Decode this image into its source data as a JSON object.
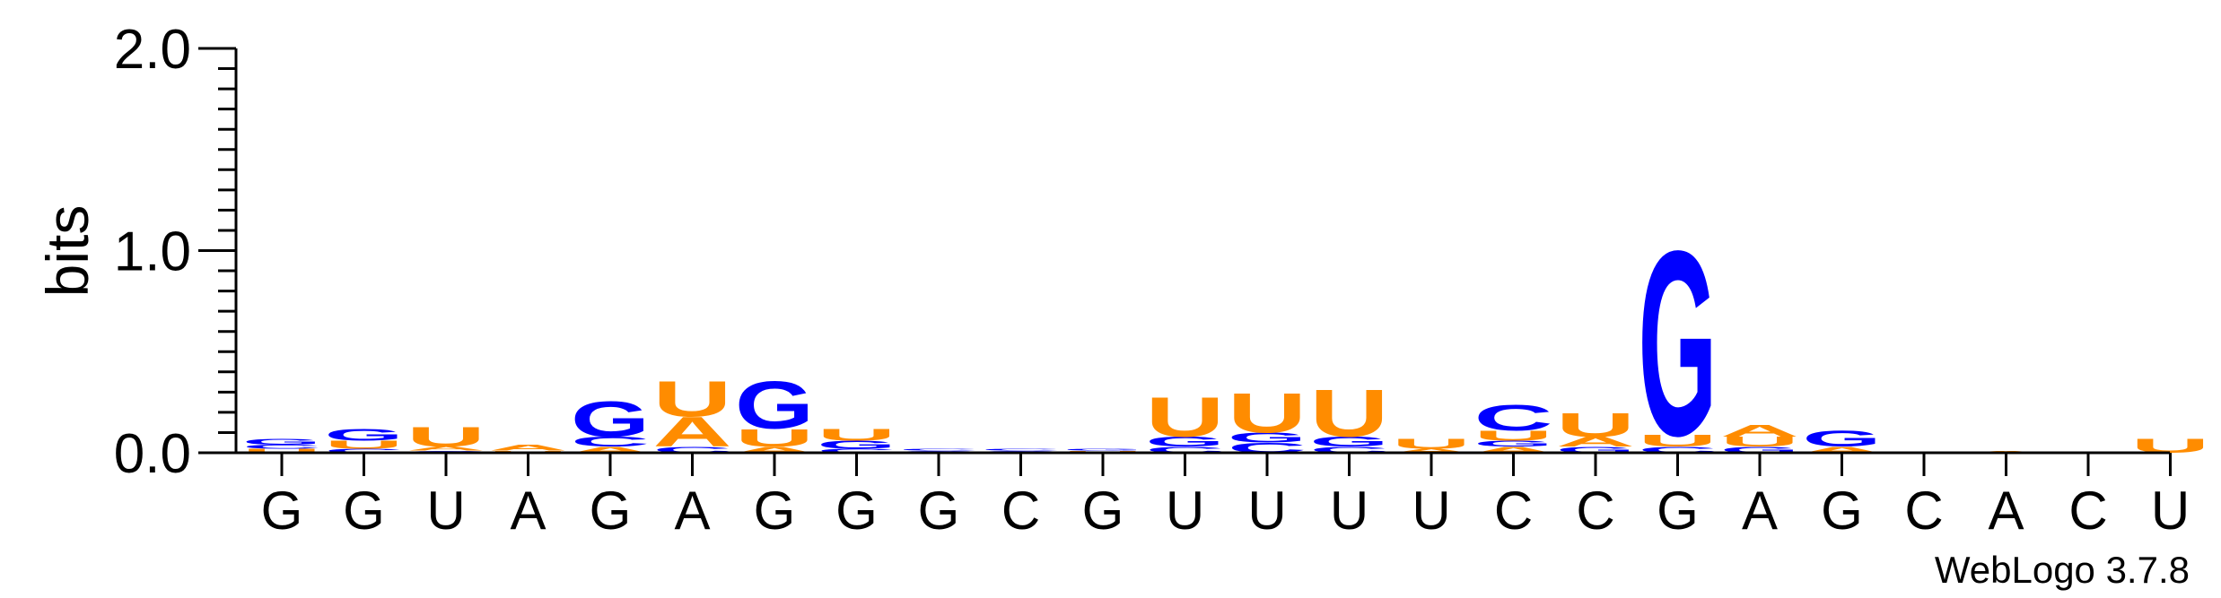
{
  "chart_data": {
    "type": "sequence-logo",
    "ylabel": "bits",
    "ylim": [
      0,
      2.0
    ],
    "yticks": [
      {
        "value": 0.0,
        "label": "0.0"
      },
      {
        "value": 1.0,
        "label": "1.0"
      },
      {
        "value": 2.0,
        "label": "2.0"
      }
    ],
    "sequence": [
      "G",
      "G",
      "U",
      "A",
      "G",
      "A",
      "G",
      "G",
      "G",
      "C",
      "G",
      "U",
      "U",
      "U",
      "U",
      "C",
      "C",
      "G",
      "A",
      "G",
      "C",
      "A",
      "C",
      "U"
    ],
    "colors": {
      "G": "#0000ff",
      "C": "#0000ff",
      "U": "#ff8c00",
      "A": "#ff8c00"
    },
    "positions": [
      {
        "letters": [
          {
            "base": "U",
            "bits": 0.02
          },
          {
            "base": "C",
            "bits": 0.02
          },
          {
            "base": "G",
            "bits": 0.03
          }
        ]
      },
      {
        "letters": [
          {
            "base": "C",
            "bits": 0.02
          },
          {
            "base": "U",
            "bits": 0.04
          },
          {
            "base": "G",
            "bits": 0.06
          }
        ]
      },
      {
        "letters": [
          {
            "base": "C",
            "bits": 0.01
          },
          {
            "base": "A",
            "bits": 0.02
          },
          {
            "base": "U",
            "bits": 0.1
          }
        ]
      },
      {
        "letters": [
          {
            "base": "U",
            "bits": 0.01
          },
          {
            "base": "A",
            "bits": 0.03
          }
        ]
      },
      {
        "letters": [
          {
            "base": "A",
            "bits": 0.03
          },
          {
            "base": "C",
            "bits": 0.05
          },
          {
            "base": "G",
            "bits": 0.18
          }
        ]
      },
      {
        "letters": [
          {
            "base": "C",
            "bits": 0.03
          },
          {
            "base": "A",
            "bits": 0.15
          },
          {
            "base": "U",
            "bits": 0.18
          }
        ]
      },
      {
        "letters": [
          {
            "base": "A",
            "bits": 0.03
          },
          {
            "base": "U",
            "bits": 0.09
          },
          {
            "base": "G",
            "bits": 0.24
          }
        ]
      },
      {
        "letters": [
          {
            "base": "C",
            "bits": 0.02
          },
          {
            "base": "G",
            "bits": 0.04
          },
          {
            "base": "U",
            "bits": 0.06
          }
        ]
      },
      {
        "letters": [
          {
            "base": "G",
            "bits": 0.01
          },
          {
            "base": "C",
            "bits": 0.01
          }
        ]
      },
      {
        "letters": [
          {
            "base": "G",
            "bits": 0.01
          },
          {
            "base": "C",
            "bits": 0.01
          }
        ]
      },
      {
        "letters": [
          {
            "base": "U",
            "bits": 0.01
          },
          {
            "base": "G",
            "bits": 0.01
          }
        ]
      },
      {
        "letters": [
          {
            "base": "C",
            "bits": 0.03
          },
          {
            "base": "G",
            "bits": 0.05
          },
          {
            "base": "U",
            "bits": 0.2
          }
        ]
      },
      {
        "letters": [
          {
            "base": "C",
            "bits": 0.05
          },
          {
            "base": "G",
            "bits": 0.05
          },
          {
            "base": "U",
            "bits": 0.2
          }
        ]
      },
      {
        "letters": [
          {
            "base": "C",
            "bits": 0.03
          },
          {
            "base": "G",
            "bits": 0.05
          },
          {
            "base": "U",
            "bits": 0.24
          }
        ]
      },
      {
        "letters": [
          {
            "base": "A",
            "bits": 0.02
          },
          {
            "base": "U",
            "bits": 0.05
          }
        ]
      },
      {
        "letters": [
          {
            "base": "A",
            "bits": 0.03
          },
          {
            "base": "G",
            "bits": 0.03
          },
          {
            "base": "U",
            "bits": 0.05
          },
          {
            "base": "C",
            "bits": 0.13
          }
        ]
      },
      {
        "letters": [
          {
            "base": "G",
            "bits": 0.03
          },
          {
            "base": "A",
            "bits": 0.05
          },
          {
            "base": "U",
            "bits": 0.12
          }
        ]
      },
      {
        "letters": [
          {
            "base": "C",
            "bits": 0.03
          },
          {
            "base": "U",
            "bits": 0.06
          },
          {
            "base": "G",
            "bits": 0.94
          }
        ]
      },
      {
        "letters": [
          {
            "base": "G",
            "bits": 0.03
          },
          {
            "base": "U",
            "bits": 0.05
          },
          {
            "base": "A",
            "bits": 0.06
          }
        ]
      },
      {
        "letters": [
          {
            "base": "A",
            "bits": 0.03
          },
          {
            "base": "G",
            "bits": 0.08
          }
        ]
      },
      {
        "letters": []
      },
      {
        "letters": [
          {
            "base": "A",
            "bits": 0.01
          }
        ]
      },
      {
        "letters": []
      },
      {
        "letters": [
          {
            "base": "U",
            "bits": 0.07
          }
        ]
      }
    ],
    "watermark": "WebLogo 3.7.8"
  }
}
